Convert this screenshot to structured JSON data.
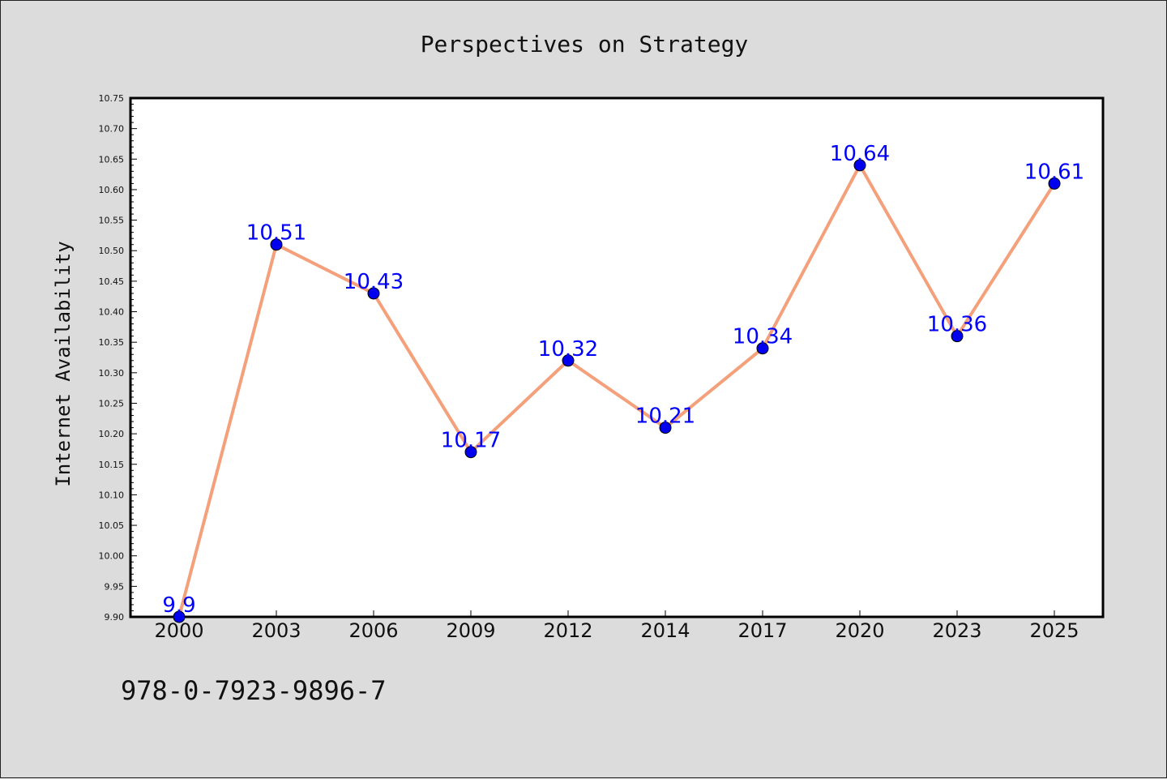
{
  "chart_data": {
    "type": "line",
    "title": "Perspectives on Strategy",
    "xlabel": "",
    "ylabel": "Internet Availability",
    "categories": [
      "2000",
      "2003",
      "2006",
      "2009",
      "2012",
      "2014",
      "2017",
      "2020",
      "2023",
      "2025"
    ],
    "series": [
      {
        "values": [
          9.9,
          10.51,
          10.43,
          10.17,
          10.32,
          10.21,
          10.34,
          10.64,
          10.36,
          10.61
        ],
        "data_labels": [
          "9.9",
          "10.51",
          "10.43",
          "10.17",
          "10.32",
          "10.21",
          "10.34",
          "10.64",
          "10.36",
          "10.61"
        ],
        "line_color": "#f4a07a",
        "marker_color": "#0000ee"
      }
    ],
    "ylim": [
      9.9,
      10.75
    ],
    "yticks": [
      "9.90",
      "9.95",
      "10.00",
      "10.05",
      "10.10",
      "10.15",
      "10.20",
      "10.25",
      "10.30",
      "10.35",
      "10.40",
      "10.45",
      "10.50",
      "10.55",
      "10.60",
      "10.65",
      "10.70",
      "10.75"
    ],
    "grid": false,
    "legend": "none",
    "label_color": "#0000ff"
  },
  "footer": {
    "code": "978-0-7923-9896-7"
  }
}
